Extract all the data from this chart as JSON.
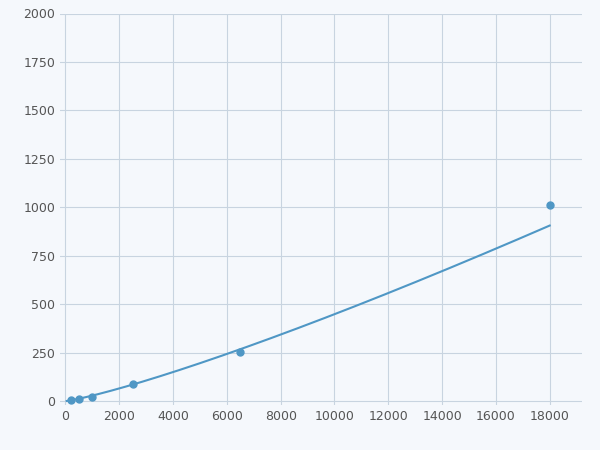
{
  "x_points": [
    200,
    500,
    1000,
    2500,
    6500,
    18000
  ],
  "y_points": [
    5,
    12,
    22,
    90,
    255,
    1010
  ],
  "line_color": "#4f97c5",
  "marker_color": "#4f97c5",
  "marker_size": 5,
  "line_width": 1.5,
  "xlim": [
    -200,
    19200
  ],
  "ylim": [
    -20,
    2000
  ],
  "xticks": [
    0,
    2000,
    4000,
    6000,
    8000,
    10000,
    12000,
    14000,
    16000,
    18000
  ],
  "yticks": [
    0,
    250,
    500,
    750,
    1000,
    1250,
    1500,
    1750,
    2000
  ],
  "grid_color": "#c8d4e0",
  "background_color": "#f5f8fc",
  "tick_label_fontsize": 9,
  "tick_label_color": "#555555"
}
